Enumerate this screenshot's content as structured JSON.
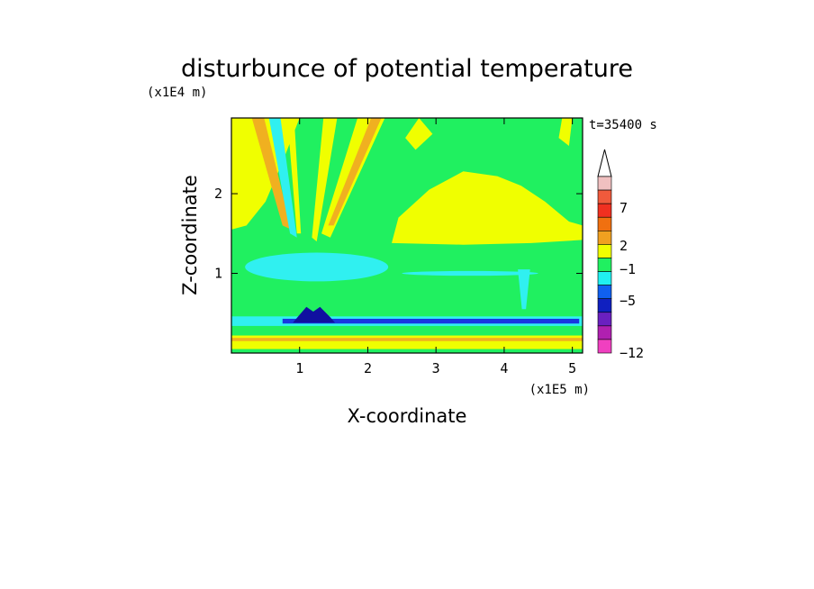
{
  "chart_data": {
    "type": "heatmap",
    "title": "disturbunce of potential temperature",
    "time_label": "t=35400 s",
    "xlabel": "X-coordinate",
    "ylabel": "Z-coordinate",
    "x_unit": "(x1E5 m)",
    "y_unit": "(x1E4 m)",
    "xlim": [
      0,
      5.15
    ],
    "ylim": [
      0,
      2.95
    ],
    "x_ticks": [
      1,
      2,
      3,
      4,
      5
    ],
    "y_ticks": [
      1,
      2
    ],
    "colorbar": {
      "labels": [
        "7",
        "2",
        "−1",
        "−5",
        "−12"
      ],
      "colors": [
        "#f0c0c0",
        "#f05a3c",
        "#f03020",
        "#f07010",
        "#f0a020",
        "#f0ff00",
        "#20f060",
        "#20f0f0",
        "#1060f0",
        "#1020c0",
        "#6a20c0",
        "#b020b0",
        "#f040c0"
      ]
    },
    "colors": {
      "green": "#20f060",
      "yellow": "#f0ff00",
      "orange": "#f0b020",
      "cyan": "#30f0f0",
      "blue": "#1838e0",
      "darkblue": "#1010a0"
    }
  }
}
